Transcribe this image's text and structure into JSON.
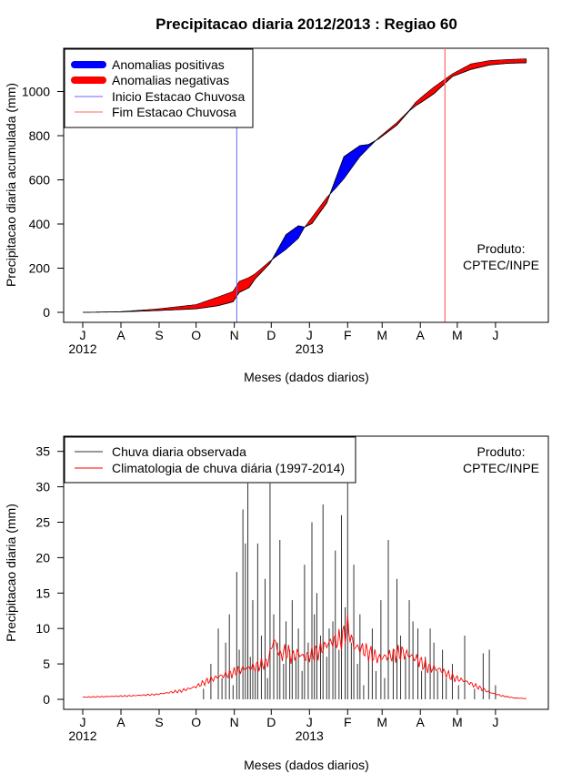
{
  "chart_data": [
    {
      "type": "area",
      "title": "Precipitacao diaria 2012/2013 : Regiao 60",
      "xlabel": "Meses (dados diarios)",
      "ylabel": "Precipitacao diaria acumulada (mm)",
      "ylim": [
        0,
        1150
      ],
      "yticks": [
        0,
        200,
        400,
        600,
        800,
        1000
      ],
      "month_ticks": [
        "J",
        "A",
        "S",
        "O",
        "N",
        "D",
        "J",
        "F",
        "M",
        "A",
        "M",
        "J"
      ],
      "year_labels": [
        "2012",
        "2013"
      ],
      "legend": {
        "position": "top-left",
        "entries": [
          "Anomalias positivas",
          "Anomalias negativas",
          "Inicio Estacao Chuvosa",
          "Fim Estacao Chuvosa"
        ]
      },
      "annotation": [
        "Produto:",
        "CPTEC/INPE"
      ],
      "colors": {
        "positive": "#0000ff",
        "negative": "#ff0000",
        "start_line": "#6666ff",
        "end_line": "#ff6666"
      },
      "season_start_day": 125,
      "season_end_day": 294,
      "observed_cumulative": {
        "day": [
          0,
          30,
          60,
          92,
          110,
          122,
          127,
          135,
          140,
          152,
          165,
          175,
          180,
          186,
          198,
          205,
          212,
          225,
          232,
          240,
          255,
          265,
          270,
          275,
          285,
          300,
          315,
          330,
          345,
          360
        ],
        "value": [
          0,
          2,
          8,
          16,
          30,
          48,
          90,
          112,
          152,
          222,
          352,
          392,
          386,
          402,
          495,
          600,
          705,
          755,
          760,
          785,
          848,
          912,
          935,
          952,
          990,
          1068,
          1100,
          1120,
          1128,
          1130
        ]
      },
      "climatology_cumulative": {
        "day": [
          0,
          30,
          60,
          92,
          110,
          122,
          127,
          135,
          140,
          152,
          165,
          175,
          180,
          186,
          198,
          205,
          212,
          225,
          232,
          240,
          255,
          265,
          270,
          275,
          285,
          300,
          315,
          330,
          345,
          360
        ],
        "value": [
          0,
          3,
          15,
          35,
          70,
          95,
          140,
          158,
          175,
          232,
          285,
          335,
          385,
          430,
          520,
          560,
          605,
          705,
          745,
          790,
          860,
          915,
          950,
          975,
          1020,
          1080,
          1125,
          1140,
          1145,
          1148
        ]
      }
    },
    {
      "type": "bar",
      "title": "",
      "xlabel": "Meses (dados diarios)",
      "ylabel": "Precipitacao diaria (mm)",
      "ylim": [
        0,
        37.5
      ],
      "yticks": [
        0,
        5,
        10,
        15,
        20,
        25,
        30,
        35
      ],
      "month_ticks": [
        "J",
        "A",
        "S",
        "O",
        "N",
        "D",
        "J",
        "F",
        "M",
        "A",
        "M",
        "J"
      ],
      "year_labels": [
        "2012",
        "2013"
      ],
      "legend": {
        "position": "top-left",
        "entries": [
          "Chuva diaria observada",
          "Climatologia de chuva diária (1997-2014)"
        ]
      },
      "annotation": [
        "Produto:",
        "CPTEC/INPE"
      ],
      "colors": {
        "observed": "#333333",
        "climatology": "#ff0000"
      },
      "observed_daily": {
        "day": [
          98,
          104,
          110,
          113,
          116,
          119,
          122,
          125,
          127,
          130,
          132,
          134,
          136,
          138,
          140,
          142,
          145,
          148,
          150,
          152,
          155,
          158,
          160,
          163,
          165,
          168,
          170,
          173,
          175,
          178,
          180,
          183,
          186,
          188,
          190,
          193,
          195,
          198,
          200,
          203,
          205,
          208,
          210,
          213,
          215,
          218,
          220,
          223,
          225,
          228,
          232,
          235,
          238,
          242,
          245,
          248,
          252,
          255,
          258,
          262,
          265,
          268,
          272,
          275,
          278,
          282,
          285,
          288,
          292,
          295,
          300,
          305,
          310,
          318,
          325,
          330,
          335
        ],
        "value": [
          1.5,
          5,
          10,
          3,
          8,
          12,
          2,
          18,
          7,
          26.8,
          22,
          30.5,
          6,
          14,
          4,
          22,
          9,
          17,
          3,
          30.5,
          12,
          8,
          22.5,
          5,
          11,
          7,
          14,
          6,
          10,
          4,
          19,
          8,
          25,
          12,
          15,
          9,
          27.5,
          6,
          10,
          11,
          21,
          7,
          26,
          13,
          30.5,
          8,
          19,
          5,
          12,
          2,
          6,
          10,
          4,
          14,
          3,
          22.5,
          7,
          17,
          9,
          6,
          14,
          11,
          10,
          4,
          6,
          10,
          8,
          4,
          7,
          3,
          5,
          2,
          9,
          1.5,
          6.5,
          7,
          2
        ]
      },
      "climatology_daily": {
        "day": [
          0,
          20,
          40,
          60,
          80,
          92,
          100,
          110,
          120,
          130,
          140,
          150,
          155,
          160,
          165,
          170,
          175,
          180,
          190,
          200,
          210,
          215,
          220,
          225,
          230,
          240,
          250,
          260,
          270,
          280,
          290,
          300,
          310,
          320,
          330,
          340,
          350,
          360
        ],
        "value": [
          0.3,
          0.4,
          0.5,
          0.7,
          1.2,
          1.8,
          2.5,
          3.2,
          3.6,
          4.3,
          4.6,
          5.2,
          8.5,
          6.2,
          6.8,
          6.0,
          6.5,
          5.9,
          6.6,
          8.0,
          8.5,
          10.2,
          7.5,
          7.2,
          6.8,
          5.8,
          6.2,
          6.6,
          5.8,
          4.5,
          4.2,
          3.1,
          2.6,
          1.8,
          1.0,
          0.5,
          0.2,
          0.1
        ]
      }
    }
  ]
}
